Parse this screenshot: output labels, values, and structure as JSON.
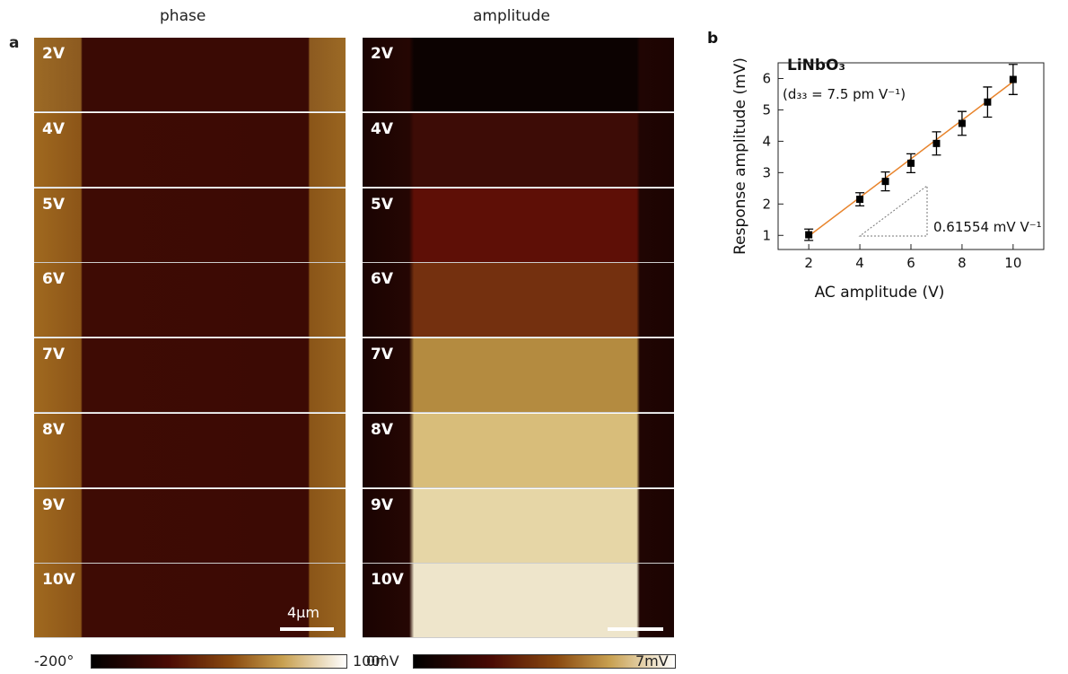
{
  "panel_a": {
    "label": "a",
    "phase": {
      "title": "phase",
      "rows": [
        "2V",
        "4V",
        "5V",
        "6V",
        "7V",
        "8V",
        "9V",
        "10V"
      ],
      "scale_bar": "4μm",
      "colorbar": {
        "min": "-200°",
        "max": "100°"
      }
    },
    "amplitude": {
      "title": "amplitude",
      "rows": [
        "2V",
        "4V",
        "5V",
        "6V",
        "7V",
        "8V",
        "9V",
        "10V"
      ],
      "colorbar": {
        "min": "0mV",
        "max": "7mV"
      }
    }
  },
  "chart_data": {
    "type": "scatter",
    "label": "b",
    "title": "LiNbO₃",
    "subtitle": "(d₃₃ = 7.5 pm V⁻¹)",
    "annotation": "0.61554 mV V⁻¹",
    "x_label": "AC amplitude (V)",
    "y_label": "Response amplitude (mV)",
    "x": [
      2,
      4,
      5,
      6,
      7,
      8,
      9,
      10
    ],
    "values": [
      1.02,
      2.15,
      2.72,
      3.3,
      3.93,
      4.57,
      5.25,
      5.97
    ],
    "errors": [
      0.18,
      0.21,
      0.3,
      0.3,
      0.37,
      0.38,
      0.48,
      0.48
    ],
    "color": "#000000",
    "fit": {
      "x": [
        2,
        10
      ],
      "values": [
        0.98,
        5.9
      ],
      "color": "#e8842c"
    },
    "xlim": [
      0.8,
      11.2
    ],
    "ylim": [
      0.55,
      6.5
    ],
    "xticks": [
      2,
      4,
      6,
      8,
      10
    ],
    "yticks": [
      1,
      2,
      3,
      4,
      5,
      6
    ]
  }
}
